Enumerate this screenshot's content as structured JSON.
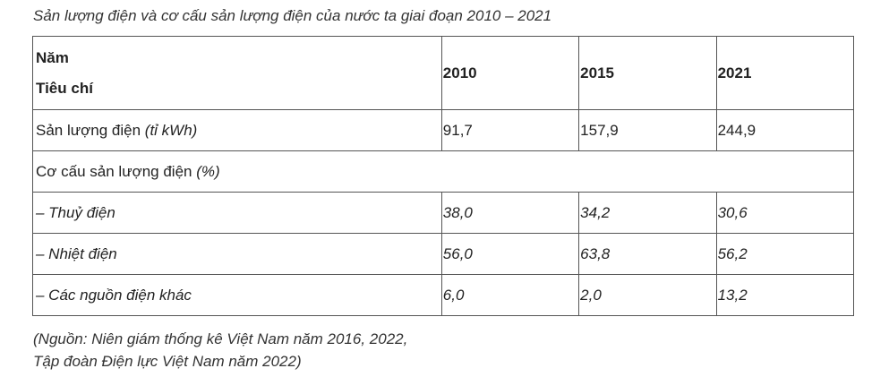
{
  "caption": "Sản lượng điện và cơ cấu sản lượng điện của nước ta giai đoạn 2010 – 2021",
  "table": {
    "header": {
      "label_line1": "Năm",
      "label_line2": "Tiêu chí",
      "years": [
        "2010",
        "2015",
        "2021"
      ]
    },
    "output_row": {
      "label": "Sản lượng điện ",
      "unit": "(tỉ kWh)",
      "values": [
        "91,7",
        "157,9",
        "244,9"
      ]
    },
    "structure_row": {
      "label": "Cơ cấu sản lượng điện ",
      "unit": "(%)"
    },
    "structure_items": [
      {
        "label": "– Thuỷ điện",
        "values": [
          "38,0",
          "34,2",
          "30,6"
        ]
      },
      {
        "label": "– Nhiệt điện",
        "values": [
          "56,0",
          "63,8",
          "56,2"
        ]
      },
      {
        "label": "– Các nguồn điện khác",
        "values": [
          "6,0",
          "2,0",
          "13,2"
        ]
      }
    ]
  },
  "source": {
    "line1": "(Nguồn: Niên giám thống kê Việt Nam năm 2016, 2022,",
    "line2": "Tập đoàn Điện lực Việt Nam năm 2022)"
  }
}
